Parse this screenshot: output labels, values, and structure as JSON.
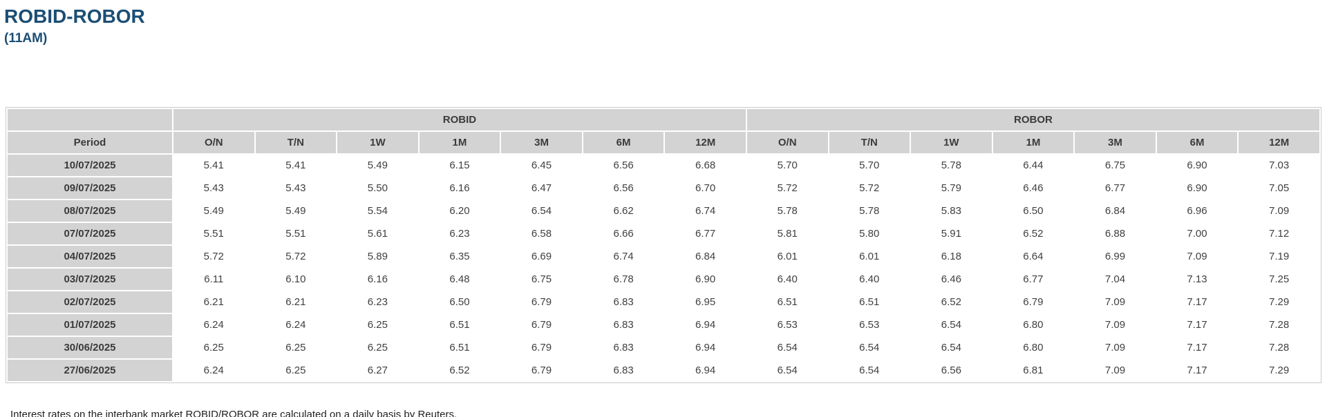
{
  "header": {
    "title": "ROBID-ROBOR",
    "subtitle": "(11AM)"
  },
  "footnote": "Interest rates on the interbank market ROBID/ROBOR are calculated on a daily basis by Reuters.",
  "colors": {
    "title_text": "#1b4e74",
    "header_cell_bg": "#d3d3d3",
    "value_text": "#3f3f3f",
    "table_border": "#c9c9c9"
  },
  "chart_data": {
    "type": "table",
    "title": "ROBID-ROBOR (11AM)",
    "period_column_header": "Period",
    "groups": [
      {
        "label": "ROBID",
        "tenors": [
          "O/N",
          "T/N",
          "1W",
          "1M",
          "3M",
          "6M",
          "12M"
        ]
      },
      {
        "label": "ROBOR",
        "tenors": [
          "O/N",
          "T/N",
          "1W",
          "1M",
          "3M",
          "6M",
          "12M"
        ]
      }
    ],
    "rows": [
      {
        "period": "10/07/2025",
        "robid": [
          5.41,
          5.41,
          5.49,
          6.15,
          6.45,
          6.56,
          6.68
        ],
        "robor": [
          5.7,
          5.7,
          5.78,
          6.44,
          6.75,
          6.9,
          7.03
        ]
      },
      {
        "period": "09/07/2025",
        "robid": [
          5.43,
          5.43,
          5.5,
          6.16,
          6.47,
          6.56,
          6.7
        ],
        "robor": [
          5.72,
          5.72,
          5.79,
          6.46,
          6.77,
          6.9,
          7.05
        ]
      },
      {
        "period": "08/07/2025",
        "robid": [
          5.49,
          5.49,
          5.54,
          6.2,
          6.54,
          6.62,
          6.74
        ],
        "robor": [
          5.78,
          5.78,
          5.83,
          6.5,
          6.84,
          6.96,
          7.09
        ]
      },
      {
        "period": "07/07/2025",
        "robid": [
          5.51,
          5.51,
          5.61,
          6.23,
          6.58,
          6.66,
          6.77
        ],
        "robor": [
          5.81,
          5.8,
          5.91,
          6.52,
          6.88,
          7.0,
          7.12
        ]
      },
      {
        "period": "04/07/2025",
        "robid": [
          5.72,
          5.72,
          5.89,
          6.35,
          6.69,
          6.74,
          6.84
        ],
        "robor": [
          6.01,
          6.01,
          6.18,
          6.64,
          6.99,
          7.09,
          7.19
        ]
      },
      {
        "period": "03/07/2025",
        "robid": [
          6.11,
          6.1,
          6.16,
          6.48,
          6.75,
          6.78,
          6.9
        ],
        "robor": [
          6.4,
          6.4,
          6.46,
          6.77,
          7.04,
          7.13,
          7.25
        ]
      },
      {
        "period": "02/07/2025",
        "robid": [
          6.21,
          6.21,
          6.23,
          6.5,
          6.79,
          6.83,
          6.95
        ],
        "robor": [
          6.51,
          6.51,
          6.52,
          6.79,
          7.09,
          7.17,
          7.29
        ]
      },
      {
        "period": "01/07/2025",
        "robid": [
          6.24,
          6.24,
          6.25,
          6.51,
          6.79,
          6.83,
          6.94
        ],
        "robor": [
          6.53,
          6.53,
          6.54,
          6.8,
          7.09,
          7.17,
          7.28
        ]
      },
      {
        "period": "30/06/2025",
        "robid": [
          6.25,
          6.25,
          6.25,
          6.51,
          6.79,
          6.83,
          6.94
        ],
        "robor": [
          6.54,
          6.54,
          6.54,
          6.8,
          7.09,
          7.17,
          7.28
        ]
      },
      {
        "period": "27/06/2025",
        "robid": [
          6.24,
          6.25,
          6.27,
          6.52,
          6.79,
          6.83,
          6.94
        ],
        "robor": [
          6.54,
          6.54,
          6.56,
          6.81,
          7.09,
          7.17,
          7.29
        ]
      }
    ]
  }
}
